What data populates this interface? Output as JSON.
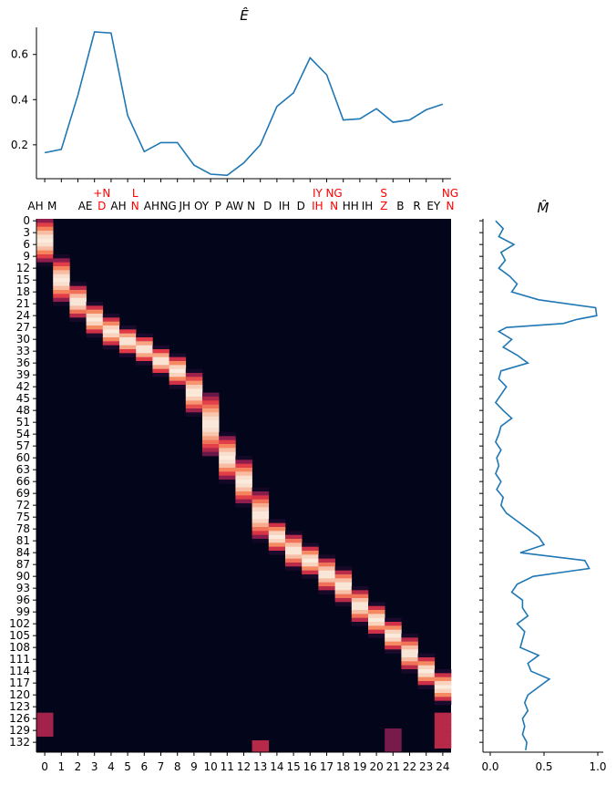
{
  "chart_data": [
    {
      "type": "line",
      "title": "Ê",
      "x": [
        0,
        1,
        2,
        3,
        4,
        5,
        6,
        7,
        8,
        9,
        10,
        11,
        12,
        13,
        14,
        15,
        16,
        17,
        18,
        19,
        20,
        21,
        22,
        23,
        24
      ],
      "values": [
        0.165,
        0.18,
        0.42,
        0.7,
        0.695,
        0.33,
        0.17,
        0.21,
        0.21,
        0.11,
        0.07,
        0.065,
        0.12,
        0.2,
        0.37,
        0.43,
        0.585,
        0.51,
        0.31,
        0.315,
        0.36,
        0.3,
        0.31,
        0.355,
        0.38
      ],
      "ylim": [
        0.05,
        0.72
      ],
      "yticks": [
        "0.2",
        "0.4",
        "0.6"
      ],
      "color": "#1f77b4"
    },
    {
      "type": "heatmap",
      "xticks": [
        "0",
        "1",
        "2",
        "3",
        "4",
        "5",
        "6",
        "7",
        "8",
        "9",
        "10",
        "11",
        "12",
        "13",
        "14",
        "15",
        "16",
        "17",
        "18",
        "19",
        "20",
        "21",
        "22",
        "23",
        "24"
      ],
      "yticks": [
        "0",
        "3",
        "6",
        "9",
        "12",
        "15",
        "18",
        "21",
        "24",
        "27",
        "30",
        "33",
        "36",
        "39",
        "42",
        "45",
        "48",
        "51",
        "54",
        "57",
        "60",
        "63",
        "66",
        "69",
        "72",
        "75",
        "78",
        "81",
        "84",
        "87",
        "90",
        "93",
        "96",
        "99",
        "102",
        "105",
        "108",
        "111",
        "114",
        "117",
        "120",
        "123",
        "126",
        "129",
        "132"
      ],
      "n_rows": 135,
      "n_cols": 25,
      "alignment_spans": [
        [
          0,
          10
        ],
        [
          10,
          20
        ],
        [
          17,
          24
        ],
        [
          22,
          28
        ],
        [
          25,
          31
        ],
        [
          28,
          33
        ],
        [
          30,
          35
        ],
        [
          33,
          38
        ],
        [
          35,
          41
        ],
        [
          39,
          48
        ],
        [
          44,
          59
        ],
        [
          55,
          65
        ],
        [
          61,
          71
        ],
        [
          69,
          80
        ],
        [
          77,
          83
        ],
        [
          80,
          87
        ],
        [
          83,
          89
        ],
        [
          86,
          93
        ],
        [
          89,
          96
        ],
        [
          94,
          101
        ],
        [
          98,
          104
        ],
        [
          102,
          108
        ],
        [
          106,
          113
        ],
        [
          111,
          117
        ],
        [
          115,
          121
        ]
      ],
      "phoneme_labels_top": [
        {
          "col": 0,
          "text": "AH",
          "color": "#000000"
        },
        {
          "col": 1,
          "text": "M",
          "color": "#000000"
        },
        {
          "col": 3,
          "text": "AE",
          "color": "#000000"
        },
        {
          "col": 4,
          "text": "+N",
          "color": "#ff0000"
        },
        {
          "col": 5,
          "text": "AH",
          "color": "#000000"
        },
        {
          "col": 6,
          "text": "L",
          "color": "#ff0000"
        },
        {
          "col": 7,
          "text": "AH",
          "color": "#000000"
        },
        {
          "col": 8,
          "text": "NG",
          "color": "#000000"
        },
        {
          "col": 9,
          "text": "JH",
          "color": "#000000"
        },
        {
          "col": 10,
          "text": "OY",
          "color": "#000000"
        },
        {
          "col": 11,
          "text": "P",
          "color": "#000000"
        },
        {
          "col": 12,
          "text": "AW",
          "color": "#000000"
        },
        {
          "col": 13,
          "text": "N",
          "color": "#000000"
        },
        {
          "col": 14,
          "text": "D",
          "color": "#000000"
        },
        {
          "col": 15,
          "text": "IH",
          "color": "#000000"
        },
        {
          "col": 16,
          "text": "D",
          "color": "#000000"
        },
        {
          "col": 17,
          "text": "IY",
          "color": "#ff0000"
        },
        {
          "col": 18,
          "text": "NG",
          "color": "#ff0000"
        },
        {
          "col": 19,
          "text": "HH",
          "color": "#000000"
        },
        {
          "col": 20,
          "text": "IH",
          "color": "#000000"
        },
        {
          "col": 21,
          "text": "S",
          "color": "#ff0000"
        },
        {
          "col": 22,
          "text": "B",
          "color": "#000000"
        },
        {
          "col": 23,
          "text": "R",
          "color": "#000000"
        },
        {
          "col": 24,
          "text": "EY",
          "color": "#000000"
        },
        {
          "col": 25,
          "text": "NG",
          "color": "#ff0000"
        }
      ],
      "phoneme_labels_bottom": [
        {
          "col": 4,
          "text": "D",
          "color": "#ff0000"
        },
        {
          "col": 6,
          "text": "N",
          "color": "#ff0000"
        },
        {
          "col": 17,
          "text": "IH",
          "color": "#ff0000"
        },
        {
          "col": 18,
          "text": "N",
          "color": "#ff0000"
        },
        {
          "col": 21,
          "text": "Z",
          "color": "#ff0000"
        },
        {
          "col": 25,
          "text": "N",
          "color": "#ff0000"
        }
      ],
      "colormap": "rocket"
    },
    {
      "type": "line",
      "title": "M̂",
      "orientation": "vertical",
      "y_rows": [
        0,
        2,
        4,
        6,
        8,
        10,
        12,
        14,
        16,
        18,
        20,
        22,
        24,
        25,
        26,
        27,
        28,
        30,
        32,
        34,
        36,
        38,
        40,
        42,
        44,
        46,
        48,
        50,
        52,
        54,
        56,
        58,
        60,
        62,
        64,
        66,
        68,
        70,
        72,
        74,
        76,
        78,
        80,
        82,
        84,
        86,
        88,
        90,
        92,
        94,
        96,
        98,
        100,
        102,
        104,
        106,
        108,
        110,
        112,
        114,
        116,
        118,
        120,
        122,
        124,
        126,
        128,
        130,
        132,
        134
      ],
      "values": [
        0.05,
        0.12,
        0.08,
        0.22,
        0.1,
        0.14,
        0.08,
        0.18,
        0.25,
        0.2,
        0.45,
        0.98,
        0.99,
        0.8,
        0.68,
        0.15,
        0.08,
        0.2,
        0.12,
        0.25,
        0.35,
        0.1,
        0.08,
        0.15,
        0.1,
        0.05,
        0.12,
        0.2,
        0.1,
        0.08,
        0.05,
        0.1,
        0.06,
        0.08,
        0.05,
        0.1,
        0.06,
        0.12,
        0.1,
        0.15,
        0.25,
        0.35,
        0.45,
        0.5,
        0.28,
        0.88,
        0.92,
        0.4,
        0.25,
        0.2,
        0.3,
        0.3,
        0.35,
        0.25,
        0.32,
        0.3,
        0.28,
        0.45,
        0.35,
        0.38,
        0.55,
        0.45,
        0.35,
        0.32,
        0.35,
        0.3,
        0.32,
        0.3,
        0.34,
        0.33
      ],
      "xlim": [
        0,
        1.0
      ],
      "xticks": [
        "0.0",
        "0.5",
        "1.0"
      ],
      "color": "#1f77b4"
    }
  ]
}
